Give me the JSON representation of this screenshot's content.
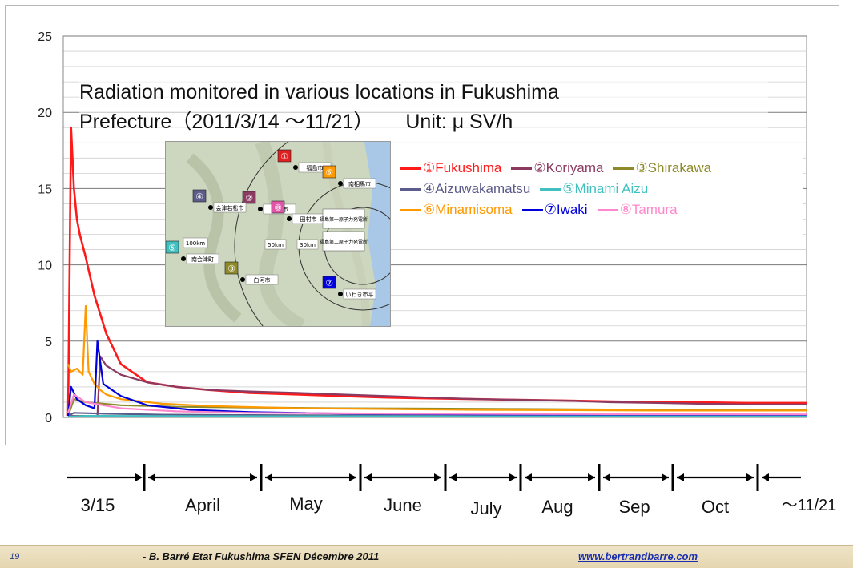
{
  "chart_data": {
    "type": "line",
    "title_line1": "Radiation monitored in various locations in Fukushima",
    "title_line2": "Prefecture（2011/3/14 〜11/21）",
    "unit_label": "Unit: μ SV/h",
    "ylim": [
      0,
      25
    ],
    "yticks": [
      "0",
      "5",
      "10",
      "15",
      "20",
      "25"
    ],
    "grid": true,
    "x_start": "2011-03-14",
    "x_end": "2011-11-21",
    "series": [
      {
        "name": "①Fukushima",
        "color": "#ff1a1a",
        "x": [
          "2011-03-14",
          "2011-03-15",
          "2011-03-16",
          "2011-03-17",
          "2011-03-18",
          "2011-03-20",
          "2011-03-23",
          "2011-03-27",
          "2011-04-01",
          "2011-04-10",
          "2011-04-20",
          "2011-05-01",
          "2011-05-15",
          "2011-06-01",
          "2011-06-15",
          "2011-07-01",
          "2011-07-15",
          "2011-08-01",
          "2011-08-15",
          "2011-09-01",
          "2011-09-15",
          "2011-10-01",
          "2011-10-15",
          "2011-11-01",
          "2011-11-21"
        ],
        "y": [
          0.1,
          19.0,
          15.0,
          13.0,
          12.0,
          10.5,
          8.0,
          5.5,
          3.5,
          2.3,
          2.0,
          1.8,
          1.6,
          1.5,
          1.4,
          1.3,
          1.25,
          1.2,
          1.15,
          1.1,
          1.05,
          1.0,
          1.0,
          0.95,
          0.95
        ]
      },
      {
        "name": "②Koriyama",
        "color": "#8b3a62",
        "x": [
          "2011-03-14",
          "2011-03-24",
          "2011-03-25",
          "2011-03-27",
          "2011-04-01",
          "2011-04-10",
          "2011-04-20",
          "2011-05-01",
          "2011-05-15",
          "2011-06-01",
          "2011-06-15",
          "2011-07-01",
          "2011-07-15",
          "2011-08-01",
          "2011-08-15",
          "2011-09-01",
          "2011-09-15",
          "2011-10-01",
          "2011-10-15",
          "2011-11-01",
          "2011-11-21"
        ],
        "y": [
          0.1,
          0.1,
          4.0,
          3.4,
          2.8,
          2.3,
          2.0,
          1.8,
          1.7,
          1.6,
          1.5,
          1.4,
          1.3,
          1.2,
          1.15,
          1.1,
          1.0,
          0.95,
          0.9,
          0.85,
          0.85
        ]
      },
      {
        "name": "③Shirakawa",
        "color": "#8e8a2a",
        "x": [
          "2011-03-14",
          "2011-03-16",
          "2011-03-20",
          "2011-04-01",
          "2011-04-20",
          "2011-05-15",
          "2011-06-15",
          "2011-07-15",
          "2011-08-15",
          "2011-09-15",
          "2011-10-15",
          "2011-11-21"
        ],
        "y": [
          0.1,
          1.2,
          1.0,
          0.8,
          0.7,
          0.65,
          0.6,
          0.58,
          0.55,
          0.52,
          0.5,
          0.5
        ]
      },
      {
        "name": "④Aizuwakamatsu",
        "color": "#5c5c8a",
        "x": [
          "2011-03-14",
          "2011-03-16",
          "2011-03-25",
          "2011-04-15",
          "2011-06-01",
          "2011-08-01",
          "2011-11-21"
        ],
        "y": [
          0.1,
          0.3,
          0.25,
          0.18,
          0.14,
          0.12,
          0.1
        ]
      },
      {
        "name": "⑤Minami Aizu",
        "color": "#40c0c0",
        "x": [
          "2011-03-14",
          "2011-03-20",
          "2011-05-01",
          "2011-08-01",
          "2011-11-21"
        ],
        "y": [
          0.05,
          0.1,
          0.08,
          0.07,
          0.07
        ]
      },
      {
        "name": "⑥Minamisoma",
        "color": "#ff9900",
        "x": [
          "2011-03-14",
          "2011-03-15",
          "2011-03-17",
          "2011-03-19",
          "2011-03-20",
          "2011-03-21",
          "2011-03-23",
          "2011-03-25",
          "2011-03-27",
          "2011-04-01",
          "2011-04-15",
          "2011-05-01",
          "2011-06-01",
          "2011-07-01",
          "2011-08-01",
          "2011-09-01",
          "2011-10-01",
          "2011-11-21"
        ],
        "y": [
          3.5,
          3.0,
          3.2,
          2.8,
          7.3,
          3.0,
          2.2,
          1.8,
          1.5,
          1.2,
          0.9,
          0.75,
          0.6,
          0.55,
          0.5,
          0.48,
          0.45,
          0.45
        ]
      },
      {
        "name": "⑦Iwaki",
        "color": "#0000dd",
        "x": [
          "2011-03-14",
          "2011-03-15",
          "2011-03-17",
          "2011-03-20",
          "2011-03-23",
          "2011-03-24",
          "2011-03-26",
          "2011-04-01",
          "2011-04-10",
          "2011-04-25",
          "2011-05-15",
          "2011-06-15",
          "2011-08-01",
          "2011-11-21"
        ],
        "y": [
          0.1,
          2.0,
          1.2,
          0.8,
          0.6,
          5.0,
          2.2,
          1.4,
          0.8,
          0.5,
          0.35,
          0.25,
          0.2,
          0.18
        ]
      },
      {
        "name": "⑧Tamura",
        "color": "#ff88cc",
        "x": [
          "2011-03-14",
          "2011-03-16",
          "2011-03-20",
          "2011-04-01",
          "2011-04-20",
          "2011-05-15",
          "2011-07-01",
          "2011-09-01",
          "2011-11-21"
        ],
        "y": [
          0.3,
          1.5,
          1.0,
          0.6,
          0.4,
          0.3,
          0.25,
          0.22,
          0.2
        ]
      }
    ]
  },
  "map_inset": {
    "markers": [
      {
        "num": "①",
        "city": "福島市",
        "color": "#e02020"
      },
      {
        "num": "②",
        "city": "郡山市",
        "color": "#8b3a62"
      },
      {
        "num": "③",
        "city": "白河市",
        "color": "#8e8a2a"
      },
      {
        "num": "④",
        "city": "会津若松市",
        "color": "#5c5c8a"
      },
      {
        "num": "⑤",
        "city": "南会津町",
        "color": "#40c0c0"
      },
      {
        "num": "⑥",
        "city": "南相馬市",
        "color": "#ff9900"
      },
      {
        "num": "⑦",
        "city": "いわき市平",
        "color": "#0000dd"
      },
      {
        "num": "⑧",
        "city": "田村市",
        "color": "#e055a8"
      }
    ],
    "plant_labels": [
      "福島第一原子力発電所",
      "福島第二原子力発電所"
    ],
    "radius_labels": [
      "100km",
      "50km",
      "30km"
    ]
  },
  "timeline": {
    "months": [
      "3/15",
      "April",
      "May",
      "June",
      "July",
      "Aug",
      "Sep",
      "Oct",
      "～11/21"
    ]
  },
  "footer": {
    "page_number": "19",
    "credit": "- B. Barré  Etat Fukushima  SFEN Décembre 2011",
    "url": "www.bertrandbarre.com"
  }
}
